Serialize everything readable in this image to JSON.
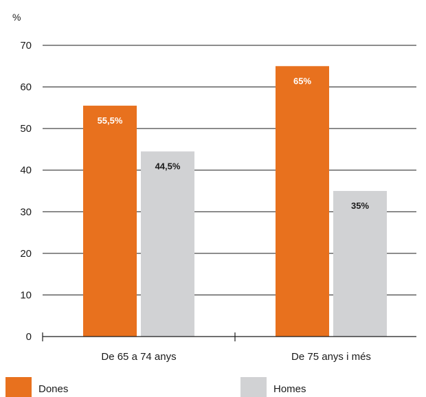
{
  "chart_data": {
    "type": "bar",
    "unit_label": "%",
    "categories": [
      "De 65 a 74 anys",
      "De 75 anys i més"
    ],
    "series": [
      {
        "name": "Dones",
        "values": [
          55.5,
          65
        ],
        "labels": [
          "55,5%",
          "65%"
        ],
        "color": "#e8711e",
        "label_color": "#ffffff"
      },
      {
        "name": "Homes",
        "values": [
          44.5,
          35
        ],
        "labels": [
          "44,5%",
          "35%"
        ],
        "color": "#d1d2d4",
        "label_color": "#1a1a1a"
      }
    ],
    "ylim": [
      0,
      70
    ],
    "yticks": [
      0,
      10,
      20,
      30,
      40,
      50,
      60,
      70
    ],
    "grid": true,
    "legend_position": "bottom"
  }
}
